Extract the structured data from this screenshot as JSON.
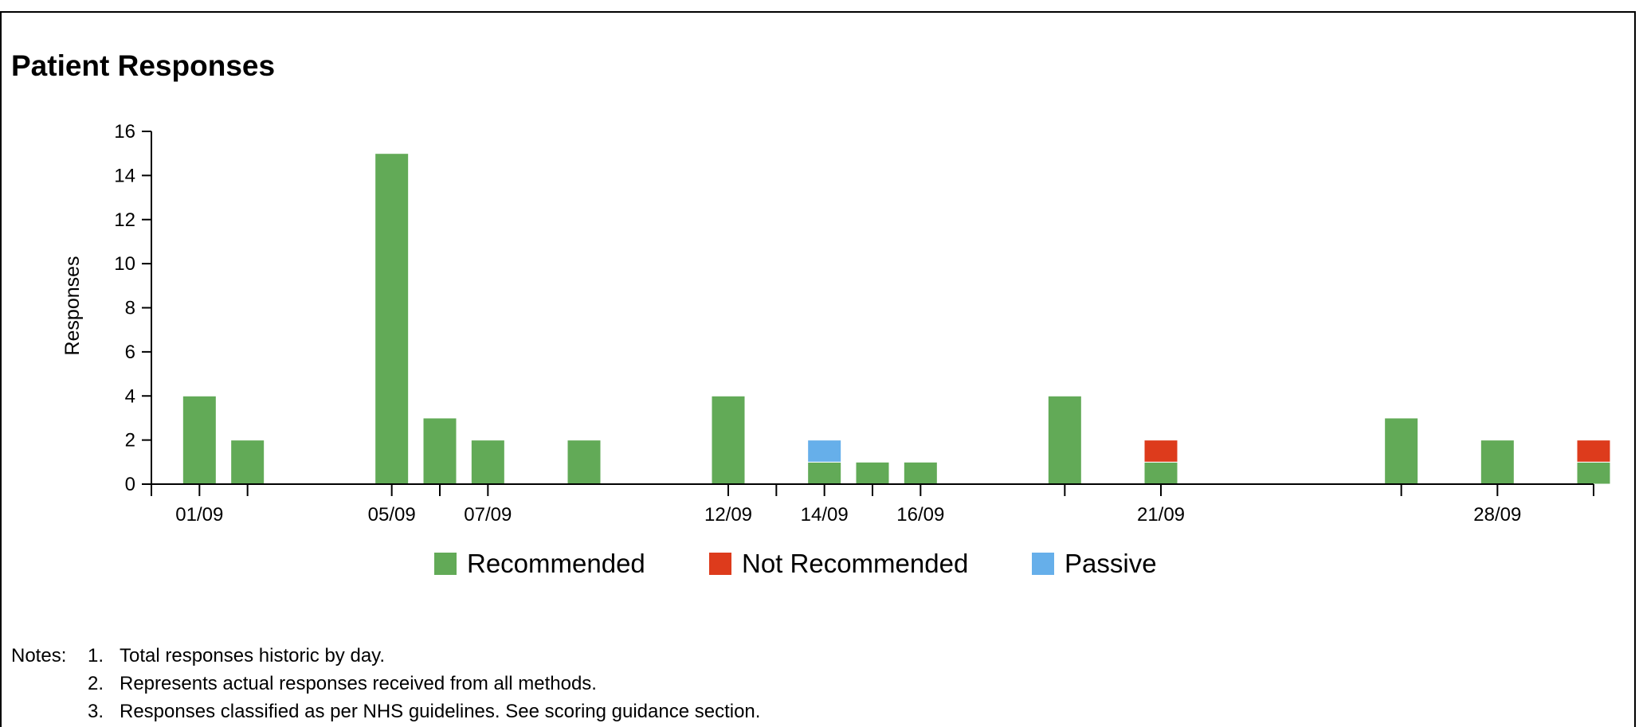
{
  "chart_data": {
    "type": "bar",
    "stacked": true,
    "title": "Patient Responses",
    "ylabel": "Responses",
    "xlabel": "",
    "ylim": [
      0,
      16
    ],
    "yticks": [
      0,
      2,
      4,
      6,
      8,
      10,
      12,
      14,
      16
    ],
    "x_axis": {
      "type": "date",
      "range": [
        "2023-08-31",
        "2023-09-30"
      ],
      "tick_labels": [
        {
          "date": "2023-09-01",
          "label": "01/09"
        },
        {
          "date": "2023-09-05",
          "label": "05/09"
        },
        {
          "date": "2023-09-07",
          "label": "07/09"
        },
        {
          "date": "2023-09-12",
          "label": "12/09"
        },
        {
          "date": "2023-09-14",
          "label": "14/09"
        },
        {
          "date": "2023-09-16",
          "label": "16/09"
        },
        {
          "date": "2023-09-21",
          "label": "21/09"
        },
        {
          "date": "2023-09-28",
          "label": "28/09"
        }
      ],
      "unlabeled_ticks": [
        "2023-08-31",
        "2023-09-02",
        "2023-09-06",
        "2023-09-13",
        "2023-09-15",
        "2023-09-19",
        "2023-09-26",
        "2023-09-30"
      ]
    },
    "x": [
      "2023-09-01",
      "2023-09-02",
      "2023-09-05",
      "2023-09-06",
      "2023-09-07",
      "2023-09-09",
      "2023-09-12",
      "2023-09-14",
      "2023-09-15",
      "2023-09-16",
      "2023-09-19",
      "2023-09-21",
      "2023-09-26",
      "2023-09-28",
      "2023-09-30"
    ],
    "series": [
      {
        "name": "Recommended",
        "color": "#62aa57",
        "values": [
          4,
          2,
          15,
          3,
          2,
          2,
          4,
          1,
          1,
          1,
          4,
          1,
          3,
          2,
          1
        ]
      },
      {
        "name": "Not Recommended",
        "color": "#dd3b1c",
        "values": [
          0,
          0,
          0,
          0,
          0,
          0,
          0,
          0,
          0,
          0,
          0,
          1,
          0,
          0,
          1
        ]
      },
      {
        "name": "Passive",
        "color": "#66afea",
        "values": [
          0,
          0,
          0,
          0,
          0,
          0,
          0,
          1,
          0,
          0,
          0,
          0,
          0,
          0,
          0
        ]
      }
    ],
    "legend": {
      "position": "bottom-center"
    }
  },
  "notes": {
    "label": "Notes:",
    "items": [
      {
        "num": "1.",
        "text": "Total responses historic by day."
      },
      {
        "num": "2.",
        "text": "Represents actual responses received from all methods."
      },
      {
        "num": "3.",
        "text": "Responses classified as per NHS guidelines. See scoring guidance section."
      }
    ]
  }
}
